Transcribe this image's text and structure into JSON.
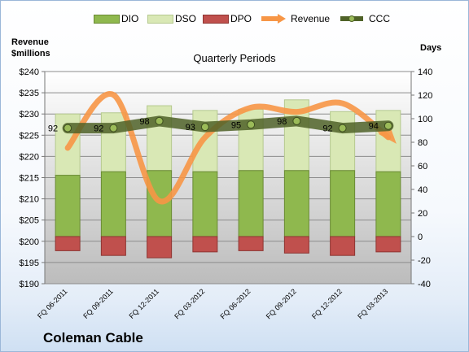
{
  "header": {
    "left_axis_title_line1": "Revenue",
    "left_axis_title_line2": "$millions",
    "right_axis_title": "Days",
    "company": "Coleman Cable"
  },
  "colors": {
    "dio": "#8fb84e",
    "dso": "#d9e8b5",
    "dpo": "#c0504d",
    "revenue": "#f79646",
    "ccc": "#4f6228",
    "plot_bg_top": "#ffffff",
    "plot_bg_bottom": "#bcbcbc"
  },
  "chart_data": {
    "type": "bar",
    "title": "Quarterly Periods",
    "categories": [
      "FQ 06-2011",
      "FQ 09-2011",
      "FQ 12-2011",
      "FQ 03-2012",
      "FQ 06-2012",
      "FQ 09-2012",
      "FQ 12-2012",
      "FQ 03-2013"
    ],
    "legend": [
      "DIO",
      "DSO",
      "DPO",
      "Revenue",
      "CCC"
    ],
    "legend_position": "top",
    "left_axis": {
      "label": "Revenue $millions",
      "ylim": [
        190,
        240
      ],
      "step": 5,
      "tick_format": "$"
    },
    "right_axis": {
      "label": "Days",
      "ylim": [
        -40,
        140
      ],
      "step": 20
    },
    "grid": true,
    "series": [
      {
        "name": "DIO",
        "type": "stacked-bar",
        "axis": "right",
        "values": [
          52,
          55,
          56,
          55,
          56,
          56,
          56,
          55
        ]
      },
      {
        "name": "DSO",
        "type": "stacked-bar",
        "axis": "right",
        "values": [
          52,
          50,
          55,
          52,
          52,
          60,
          50,
          52
        ]
      },
      {
        "name": "DPO",
        "type": "stacked-bar",
        "axis": "right",
        "values": [
          -12,
          -16,
          -18,
          -13,
          -12,
          -14,
          -16,
          -13
        ]
      },
      {
        "name": "Revenue",
        "type": "line",
        "axis": "left",
        "values": [
          222,
          234.5,
          209.5,
          224.5,
          231.5,
          230.5,
          232.5,
          224.5
        ]
      },
      {
        "name": "CCC",
        "type": "line",
        "axis": "right",
        "values": [
          92,
          92,
          98,
          93,
          95,
          98,
          92,
          94
        ],
        "data_labels": [
          "92",
          "92",
          "98",
          "93",
          "95",
          "98",
          "92",
          "94"
        ]
      }
    ]
  }
}
